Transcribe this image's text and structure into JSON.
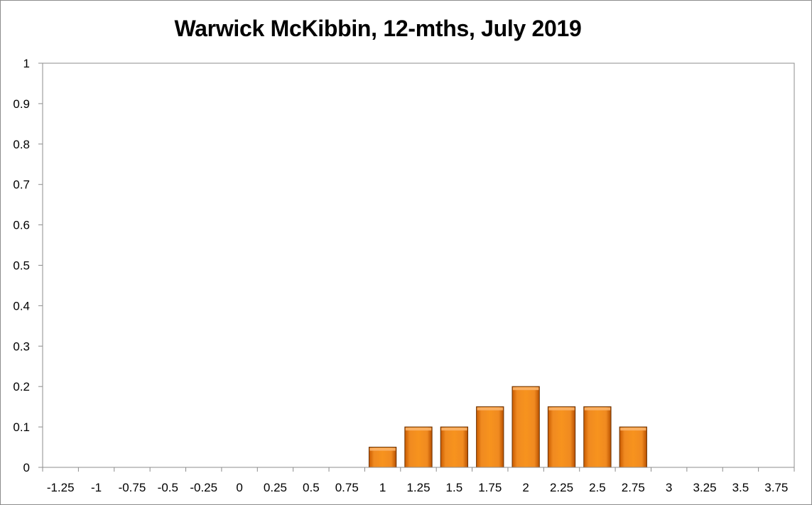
{
  "chart_data": {
    "type": "bar",
    "title": "Warwick McKibbin, 12-mths, July 2019",
    "xlabel": "",
    "ylabel": "",
    "categories": [
      "-1.25",
      "-1",
      "-0.75",
      "-0.5",
      "-0.25",
      "0",
      "0.25",
      "0.5",
      "0.75",
      "1",
      "1.25",
      "1.5",
      "1.75",
      "2",
      "2.25",
      "2.5",
      "2.75",
      "3",
      "3.25",
      "3.5",
      "3.75"
    ],
    "values": [
      0,
      0,
      0,
      0,
      0,
      0,
      0,
      0,
      0,
      0.05,
      0.1,
      0.1,
      0.15,
      0.2,
      0.15,
      0.15,
      0.1,
      0,
      0,
      0,
      0
    ],
    "ylim": [
      0,
      1
    ],
    "yticks": [
      "0",
      "0.1",
      "0.2",
      "0.3",
      "0.4",
      "0.5",
      "0.6",
      "0.7",
      "0.8",
      "0.9",
      "1"
    ],
    "grid": false,
    "legend": "none",
    "bar_color": "#f07b12",
    "bar_edge_color": "#6b3200"
  }
}
